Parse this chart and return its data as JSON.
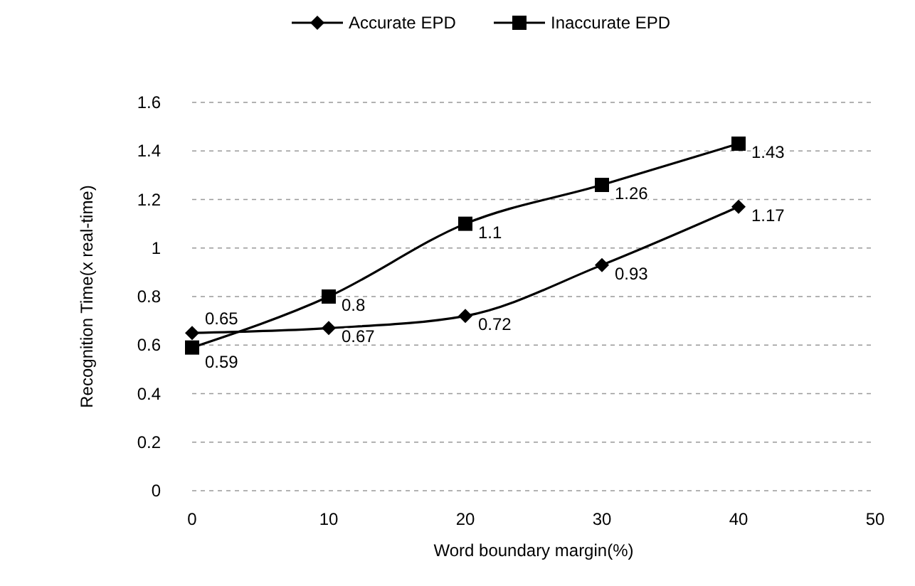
{
  "chart_data": {
    "type": "line",
    "xlabel": "Word boundary margin(%)",
    "ylabel": "Recognition Time(x real-time)",
    "x": [
      0,
      10,
      20,
      30,
      40
    ],
    "series": [
      {
        "name": "Accurate EPD",
        "color": "#000000",
        "marker": "diamond",
        "values": [
          0.65,
          0.67,
          0.72,
          0.93,
          1.17
        ]
      },
      {
        "name": "Inaccurate EPD",
        "color": "#000000",
        "marker": "square",
        "values": [
          0.59,
          0.8,
          1.1,
          1.26,
          1.43
        ]
      }
    ],
    "xlim": [
      0,
      50
    ],
    "xticks": [
      0,
      10,
      20,
      30,
      40,
      50
    ],
    "ylim": [
      0,
      1.6
    ],
    "yticks": [
      0,
      0.2,
      0.4,
      0.6,
      0.8,
      1,
      1.2,
      1.4,
      1.6
    ],
    "grid": "y",
    "legend": "top",
    "data_labels": true
  }
}
